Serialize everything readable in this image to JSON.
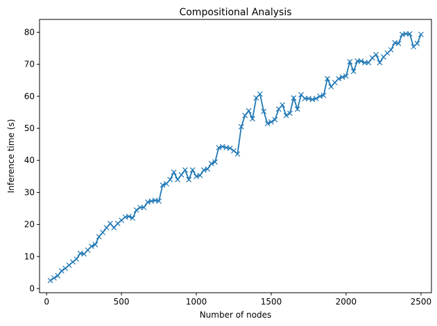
{
  "chart_data": {
    "type": "line",
    "title": "Compositional Analysis",
    "xlabel": "Number of nodes",
    "ylabel": "Inference time (s)",
    "xlim": [
      -47,
      2570
    ],
    "ylim": [
      -1.3,
      84
    ],
    "xticks": [
      0,
      500,
      1000,
      1500,
      2000,
      2500
    ],
    "yticks": [
      0,
      10,
      20,
      30,
      40,
      50,
      60,
      70,
      80
    ],
    "grid": false,
    "legend": "none",
    "marker": "x",
    "color": "#1f77b4",
    "series": [
      {
        "x": [
          25,
          50,
          75,
          100,
          125,
          150,
          175,
          200,
          225,
          250,
          275,
          300,
          325,
          350,
          375,
          400,
          425,
          450,
          475,
          500,
          525,
          550,
          575,
          600,
          625,
          650,
          675,
          700,
          725,
          750,
          775,
          800,
          825,
          850,
          875,
          900,
          925,
          950,
          975,
          1000,
          1025,
          1050,
          1075,
          1100,
          1125,
          1150,
          1175,
          1200,
          1225,
          1250,
          1275,
          1300,
          1325,
          1350,
          1375,
          1400,
          1425,
          1450,
          1475,
          1500,
          1525,
          1550,
          1575,
          1600,
          1625,
          1650,
          1675,
          1700,
          1725,
          1750,
          1775,
          1800,
          1825,
          1850,
          1875,
          1900,
          1925,
          1950,
          1975,
          2000,
          2025,
          2050,
          2075,
          2100,
          2125,
          2150,
          2175,
          2200,
          2225,
          2250,
          2275,
          2300,
          2325,
          2350,
          2375,
          2400,
          2425,
          2450,
          2475,
          2500
        ],
        "y": [
          2.5,
          3.3,
          4.0,
          5.5,
          6.3,
          7.3,
          8.3,
          9.2,
          11.0,
          10.8,
          12.0,
          13.2,
          13.7,
          16.2,
          17.5,
          19.0,
          20.3,
          19.0,
          20.3,
          21.3,
          22.3,
          22.5,
          22.0,
          24.5,
          25.3,
          25.3,
          27.0,
          27.3,
          27.5,
          27.3,
          32.3,
          32.7,
          34.0,
          36.3,
          34.0,
          35.5,
          37.0,
          34.0,
          37.0,
          35.0,
          35.3,
          37.0,
          37.3,
          39.0,
          39.5,
          44.0,
          44.3,
          44.0,
          43.8,
          43.0,
          42.0,
          50.5,
          54.0,
          55.5,
          53.0,
          59.5,
          60.7,
          55.3,
          51.5,
          52.0,
          52.7,
          56.0,
          57.3,
          54.0,
          54.7,
          59.5,
          56.0,
          60.5,
          59.3,
          59.3,
          59.0,
          59.3,
          60.0,
          60.3,
          65.5,
          63.0,
          64.3,
          65.5,
          66.0,
          66.3,
          70.8,
          67.8,
          71.0,
          71.0,
          70.5,
          70.5,
          72.0,
          73.0,
          70.5,
          72.3,
          73.5,
          74.5,
          76.7,
          76.5,
          79.3,
          79.5,
          79.5,
          75.5,
          76.5,
          79.3
        ]
      }
    ]
  }
}
